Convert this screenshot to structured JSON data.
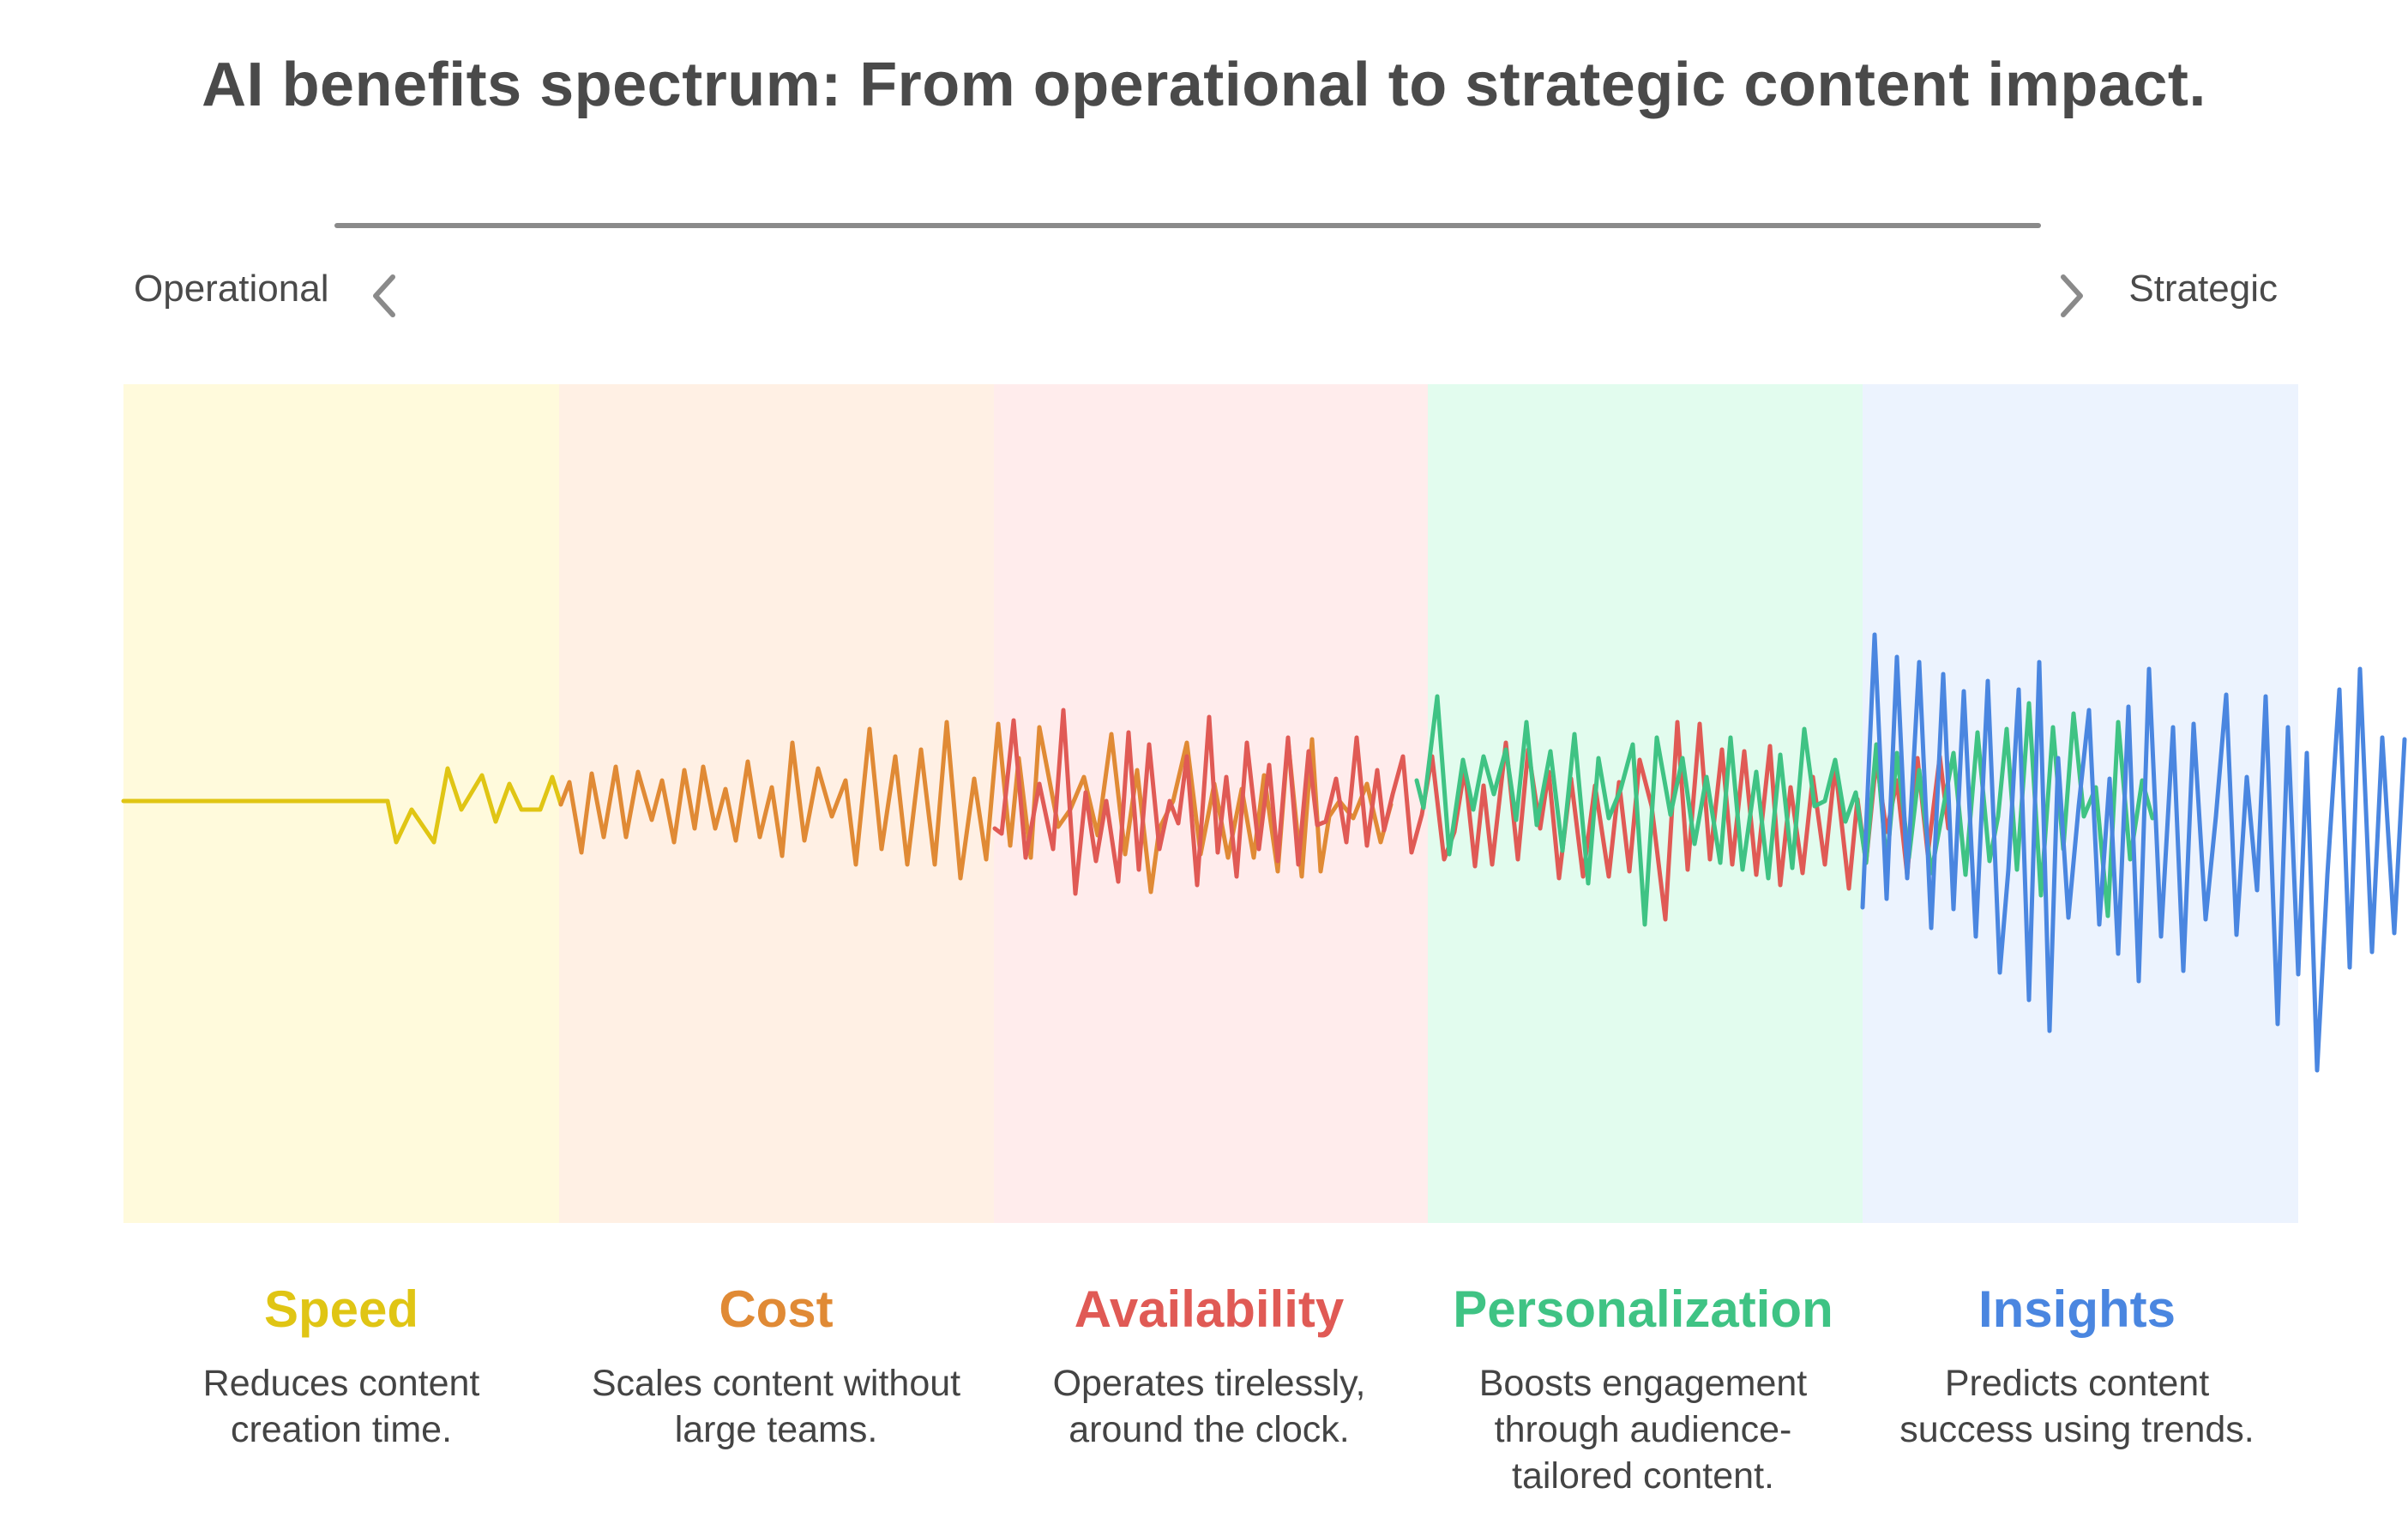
{
  "title": "AI benefits spectrum: From operational to strategic content impact.",
  "axis": {
    "left_label": "Operational",
    "right_label": "Strategic",
    "line_color": "#8a8a8a",
    "left_icon": "chevron-left-icon",
    "right_icon": "chevron-right-icon"
  },
  "categories": [
    {
      "key": "speed",
      "name": "Speed",
      "description": "Reduces content creation time.",
      "color": "#e0c514",
      "band_color": "#fffadc"
    },
    {
      "key": "cost",
      "name": "Cost",
      "description": "Scales content without large teams.",
      "color": "#e08a35",
      "band_color": "#fff0e4"
    },
    {
      "key": "availability",
      "name": "Availability",
      "description": "Operates tirelessly, around the clock.",
      "color": "#e05a55",
      "band_color": "#ffecec"
    },
    {
      "key": "personalization",
      "name": "Personalization",
      "description": "Boosts engagement through audience-tailored content.",
      "color": "#3fc384",
      "band_color": "#e2fcee"
    },
    {
      "key": "insights",
      "name": "Insights",
      "description": "Predicts content success using trends.",
      "color": "#4a86e0",
      "band_color": "#ecf3fe"
    }
  ]
}
